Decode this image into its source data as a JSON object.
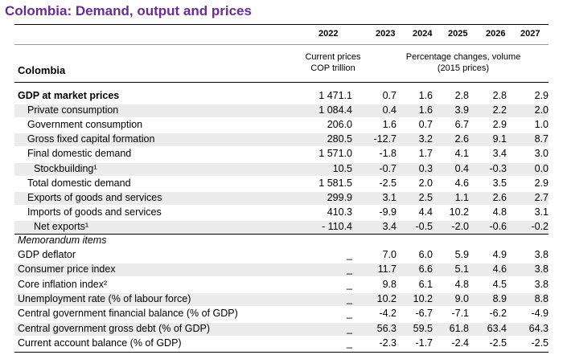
{
  "title": "Colombia: Demand, output and prices",
  "years": [
    "2022",
    "2023",
    "2024",
    "2025",
    "2026",
    "2027"
  ],
  "header_current_prices": "Current prices",
  "header_cop_trillion": "COP trillion",
  "header_pct_changes": "Percentage changes, volume",
  "header_2015_prices": "(2015 prices)",
  "country": "Colombia",
  "memo_label": "Memorandum items",
  "rows": [
    {
      "label": "GDP at market prices",
      "bold": true,
      "indent": 0,
      "values": [
        "1 471.1",
        "0.7",
        "1.6",
        "2.8",
        "2.8",
        "2.9"
      ]
    },
    {
      "label": "Private consumption",
      "indent": 1,
      "values": [
        "1 084.4",
        "0.4",
        "1.6",
        "3.9",
        "2.2",
        "2.0"
      ]
    },
    {
      "label": "Government consumption",
      "indent": 1,
      "values": [
        "206.0",
        "1.6",
        "0.7",
        "6.7",
        "2.9",
        "1.0"
      ]
    },
    {
      "label": "Gross fixed capital formation",
      "indent": 1,
      "values": [
        "280.5",
        "-12.7",
        "3.2",
        "2.6",
        "9.1",
        "8.7"
      ]
    },
    {
      "label": "Final domestic demand",
      "indent": 1,
      "values": [
        "1 571.0",
        "-1.8",
        "1.7",
        "4.1",
        "3.4",
        "3.0"
      ]
    },
    {
      "label": "Stockbuilding¹",
      "indent": 2,
      "values": [
        "10.5",
        "-0.7",
        "0.3",
        "0.4",
        "-0.3",
        "0.0"
      ]
    },
    {
      "label": "Total domestic demand",
      "indent": 1,
      "values": [
        "1 581.5",
        "-2.5",
        "2.0",
        "4.6",
        "3.5",
        "2.9"
      ]
    },
    {
      "label": "Exports of goods and services",
      "indent": 1,
      "values": [
        "299.9",
        "3.1",
        "2.5",
        "1.1",
        "2.6",
        "2.7"
      ]
    },
    {
      "label": "Imports of goods and services",
      "indent": 1,
      "values": [
        "410.3",
        "-9.9",
        "4.4",
        "10.2",
        "4.8",
        "3.1"
      ]
    },
    {
      "label": "Net exports¹",
      "indent": 2,
      "values": [
        "- 110.4",
        "3.4",
        "-0.5",
        "-2.0",
        "-0.6",
        "-0.2"
      ]
    }
  ],
  "memo_rows": [
    {
      "label": "GDP deflator",
      "values": [
        "_",
        "7.0",
        "6.0",
        "5.9",
        "4.9",
        "3.8"
      ]
    },
    {
      "label": "Consumer price index",
      "values": [
        "_",
        "11.7",
        "6.6",
        "5.1",
        "4.6",
        "3.8"
      ]
    },
    {
      "label": "Core inflation index²",
      "values": [
        "_",
        "9.8",
        "6.1",
        "4.8",
        "4.5",
        "3.8"
      ]
    },
    {
      "label": "Unemployment rate (% of labour force)",
      "values": [
        "_",
        "10.2",
        "10.2",
        "9.0",
        "8.9",
        "8.8"
      ]
    },
    {
      "label": "Central government financial balance (% of GDP)",
      "values": [
        "_",
        "-4.2",
        "-6.7",
        "-7.1",
        "-6.2",
        "-4.9"
      ]
    },
    {
      "label": "Central government gross debt (% of GDP)",
      "values": [
        "_",
        "56.3",
        "59.5",
        "61.8",
        "63.4",
        "64.3"
      ]
    },
    {
      "label": "Current account balance (% of GDP)",
      "values": [
        "_",
        "-2.3",
        "-1.7",
        "-2.4",
        "-2.5",
        "-2.5"
      ]
    }
  ]
}
